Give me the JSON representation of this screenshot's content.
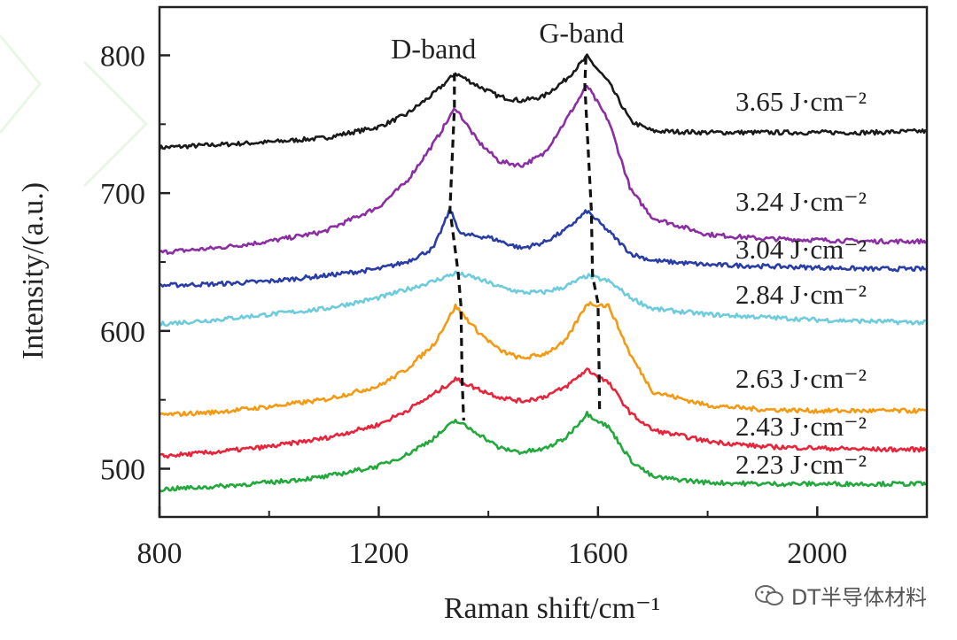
{
  "chart_data": {
    "type": "line",
    "xlabel": "Raman shift/cm⁻¹",
    "ylabel": "Intensity/(a.u.)",
    "xlim": [
      800,
      2200
    ],
    "ylim": [
      465,
      835
    ],
    "x_ticks": [
      "800",
      "1200",
      "1600",
      "2000"
    ],
    "x_tick_values": [
      800,
      1200,
      1600,
      2000
    ],
    "y_ticks": [
      "500",
      "600",
      "700",
      "800"
    ],
    "y_tick_values": [
      500,
      600,
      700,
      800
    ],
    "annotations": {
      "d_band": "D-band",
      "g_band": "G-band"
    },
    "series": [
      {
        "name": "3.65 J·cm⁻²",
        "color": "#1a1a1a",
        "x": [
          800,
          900,
          1000,
          1100,
          1200,
          1250,
          1300,
          1340,
          1380,
          1420,
          1460,
          1500,
          1540,
          1580,
          1620,
          1660,
          1700,
          1800,
          1900,
          2000,
          2100,
          2200
        ],
        "y": [
          733,
          735,
          737,
          740,
          748,
          757,
          772,
          787,
          778,
          770,
          767,
          770,
          782,
          799,
          780,
          752,
          745,
          744,
          744,
          744,
          744,
          745
        ]
      },
      {
        "name": "3.24 J·cm⁻²",
        "color": "#8b2ea3",
        "x": [
          800,
          900,
          1000,
          1100,
          1200,
          1250,
          1300,
          1340,
          1380,
          1420,
          1460,
          1500,
          1540,
          1580,
          1620,
          1660,
          1700,
          1800,
          1900,
          2000,
          2100,
          2200
        ],
        "y": [
          657,
          660,
          665,
          672,
          690,
          708,
          736,
          762,
          738,
          723,
          720,
          728,
          752,
          778,
          752,
          702,
          682,
          670,
          667,
          666,
          665,
          665
        ]
      },
      {
        "name": "3.04 J·cm⁻²",
        "color": "#2a3da6",
        "x": [
          800,
          900,
          1000,
          1100,
          1200,
          1250,
          1300,
          1330,
          1350,
          1400,
          1460,
          1500,
          1540,
          1580,
          1620,
          1660,
          1700,
          1800,
          1900,
          2000,
          2100,
          2200
        ],
        "y": [
          633,
          634,
          636,
          640,
          645,
          650,
          660,
          688,
          670,
          668,
          660,
          664,
          673,
          687,
          672,
          656,
          651,
          648,
          647,
          646,
          645,
          645
        ]
      },
      {
        "name": "2.84 J·cm⁻²",
        "color": "#6dcbdc",
        "x": [
          800,
          900,
          1000,
          1100,
          1200,
          1250,
          1300,
          1340,
          1380,
          1420,
          1460,
          1500,
          1540,
          1580,
          1620,
          1660,
          1700,
          1800,
          1900,
          2000,
          2100,
          2200
        ],
        "y": [
          605,
          608,
          612,
          616,
          624,
          630,
          636,
          642,
          638,
          632,
          628,
          628,
          632,
          640,
          636,
          624,
          616,
          612,
          610,
          608,
          607,
          606
        ]
      },
      {
        "name": "2.63 J·cm⁻²",
        "color": "#f39a12",
        "x": [
          800,
          900,
          1000,
          1100,
          1200,
          1250,
          1300,
          1340,
          1380,
          1420,
          1460,
          1500,
          1540,
          1580,
          1620,
          1660,
          1700,
          1800,
          1900,
          2000,
          2100,
          2200
        ],
        "y": [
          539,
          541,
          545,
          550,
          560,
          572,
          590,
          618,
          600,
          586,
          580,
          583,
          592,
          620,
          618,
          582,
          556,
          546,
          543,
          542,
          542,
          542
        ]
      },
      {
        "name": "2.43 J·cm⁻²",
        "color": "#e8243b",
        "x": [
          800,
          900,
          1000,
          1100,
          1200,
          1250,
          1300,
          1340,
          1380,
          1420,
          1460,
          1500,
          1540,
          1580,
          1620,
          1660,
          1700,
          1800,
          1900,
          2000,
          2100,
          2200
        ],
        "y": [
          509,
          512,
          516,
          522,
          532,
          542,
          554,
          565,
          558,
          552,
          549,
          552,
          559,
          572,
          562,
          540,
          528,
          520,
          516,
          515,
          514,
          514
        ]
      },
      {
        "name": "2.23 J·cm⁻²",
        "color": "#22a83c",
        "x": [
          800,
          900,
          1000,
          1100,
          1200,
          1250,
          1300,
          1340,
          1380,
          1420,
          1460,
          1500,
          1540,
          1580,
          1620,
          1660,
          1700,
          1800,
          1900,
          2000,
          2100,
          2200
        ],
        "y": [
          485,
          487,
          490,
          494,
          502,
          510,
          522,
          535,
          526,
          515,
          512,
          514,
          522,
          540,
          530,
          506,
          494,
          490,
          489,
          489,
          489,
          489
        ]
      }
    ]
  },
  "watermark": {
    "text": "DT半导体材料",
    "icon": "wechat-icon"
  }
}
